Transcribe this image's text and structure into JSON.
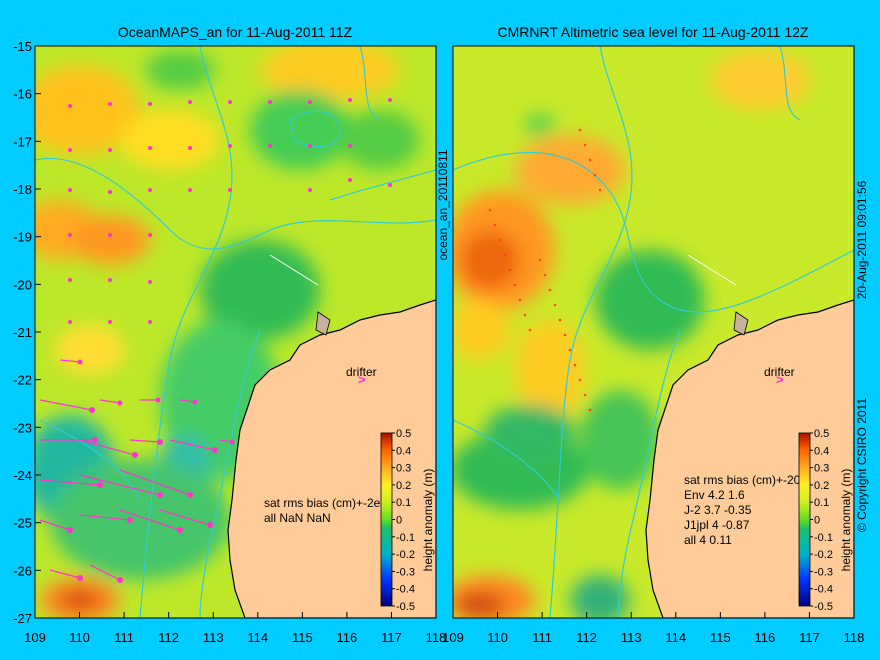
{
  "chart_data": [
    {
      "type": "heatmap",
      "title": "OceanMAPS_an for 11-Aug-2011 11Z",
      "x_ticks": [
        "109",
        "110",
        "111",
        "112",
        "113",
        "114",
        "115",
        "116",
        "117",
        "118"
      ],
      "y_ticks": [
        "-15",
        "-16",
        "-17",
        "-18",
        "-19",
        "-20",
        "-21",
        "-22",
        "-23",
        "-24",
        "-25",
        "-26",
        "-27"
      ],
      "xlim": [
        109,
        118
      ],
      "ylim": [
        -27,
        -15
      ],
      "annotation_drifter": "drifter",
      "stats_lines": [
        "sat rms bias (cm)+-2e",
        "all NaN NaN"
      ],
      "colorbar": {
        "label": "height anomaly (m)",
        "ticks": [
          "0.5",
          "0.4",
          "0.3",
          "0.2",
          "0.1",
          "0",
          "-0.1",
          "-0.2",
          "-0.3",
          "-0.4",
          "-0.5"
        ],
        "range": [
          -0.5,
          0.5
        ]
      }
    },
    {
      "type": "heatmap",
      "title": "CMRNRT Altimetric sea level  for 11-Aug-2011 12Z",
      "x_ticks": [
        "109",
        "110",
        "111",
        "112",
        "113",
        "114",
        "115",
        "116",
        "117",
        "118"
      ],
      "xlim": [
        109,
        118
      ],
      "ylim": [
        -27,
        -15
      ],
      "annotation_drifter": "drifter",
      "stats_lines": [
        "sat rms bias (cm)+-20",
        "Env   4.2 1.6",
        "J-2    3.7 -0.35",
        "J1jpl 4 -0.87",
        "all 4 0.11"
      ],
      "colorbar": {
        "label": "height anomaly (m)",
        "ticks": [
          "0.5",
          "0.4",
          "0.3",
          "0.2",
          "0.1",
          "0",
          "-0.1",
          "-0.2",
          "-0.3",
          "-0.4",
          "-0.5"
        ],
        "range": [
          -0.5,
          0.5
        ]
      }
    }
  ],
  "side_label": "ocean_an_20110811",
  "copyright": "© Copyright CSIRO 2011",
  "timestamp": "20-Aug-2011 09:01:56",
  "colors": {
    "background": "#00ccff",
    "land": "#ffcc99",
    "coastline": "#000000",
    "contour": "#33cccc",
    "arrow": "#ff33cc"
  }
}
